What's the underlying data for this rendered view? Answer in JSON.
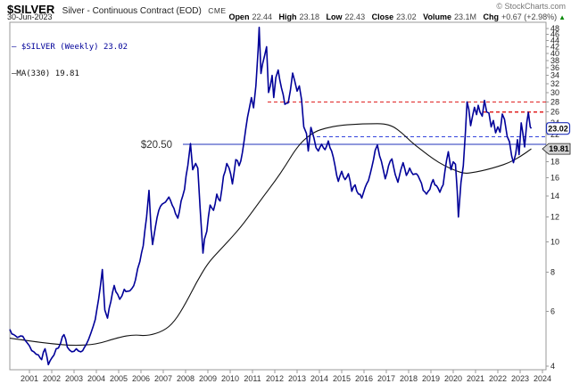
{
  "header": {
    "symbol": "$SILVER",
    "description": "Silver - Continuous Contract (EOD)",
    "exchange": "CME",
    "date": "30-Jun-2023",
    "copyright": "© StockCharts.com",
    "quote": {
      "open_label": "Open",
      "open": "22.44",
      "high_label": "High",
      "high": "23.18",
      "low_label": "Low",
      "low": "22.43",
      "close_label": "Close",
      "close": "23.02",
      "volume_label": "Volume",
      "volume": "23.1M",
      "chg_label": "Chg",
      "chg": "+0.67 (+2.98%)",
      "chg_icon": "▲",
      "chg_direction": "up"
    }
  },
  "legend": {
    "swatch_glyph": "—",
    "series1": " $SILVER (Weekly) 23.02",
    "series2": "MA(330) 19.81"
  },
  "annotations": {
    "level_label": "$20.50",
    "price_badge": {
      "text": "23.02",
      "value": 23.02
    },
    "ma_badge": {
      "text": "19.81",
      "value": 19.81
    }
  },
  "colors": {
    "price_line": "#000099",
    "ma_line": "#111111",
    "support_solid": "#2233bb",
    "support_dashed": "#3344dd",
    "resistance_dashed": "#e02222",
    "frame": "#999999",
    "axis_text": "#333333",
    "up_green": "#0a8a0a"
  },
  "chart_data": {
    "type": "line",
    "title": "$SILVER Silver - Continuous Contract (EOD) CME",
    "subtitle": "Weekly line chart with 330-period moving average, log scale",
    "x_axis": {
      "ticks": [
        2001,
        2002,
        2003,
        2004,
        2005,
        2006,
        2007,
        2008,
        2009,
        2010,
        2011,
        2012,
        2013,
        2014,
        2015,
        2016,
        2017,
        2018,
        2019,
        2020,
        2021,
        2022,
        2023,
        2024
      ],
      "range": [
        2000.1,
        2024.2
      ]
    },
    "y_axis": {
      "scale": "log",
      "ticks": [
        48,
        46,
        44,
        42,
        40,
        38,
        36,
        34,
        32,
        30,
        28,
        26,
        24,
        22,
        20,
        18,
        16,
        14,
        12,
        10,
        8,
        6,
        4
      ],
      "unlabeled": [
        20
      ],
      "range": [
        4,
        48
      ],
      "grid": false
    },
    "legend_position": "top-left-inside",
    "levels": [
      {
        "price": 20.5,
        "from": 2007.88,
        "style": "solid",
        "color": "#2233bb",
        "label": "$20.50"
      },
      {
        "price": 21.65,
        "from": 2013.88,
        "style": "dashed",
        "color": "#3344dd",
        "label": ""
      },
      {
        "price": 28.0,
        "from": 2011.68,
        "style": "dashed",
        "color": "#e02222",
        "label": ""
      },
      {
        "price": 26.0,
        "from": 2021.36,
        "style": "dashed",
        "color": "#e02222",
        "label": ""
      }
    ],
    "series": [
      {
        "name": "$SILVER (Weekly)",
        "last": 23.02,
        "color": "#000099",
        "points": [
          [
            2000.12,
            5.25
          ],
          [
            2000.3,
            5.05
          ],
          [
            2000.45,
            4.95
          ],
          [
            2000.6,
            5.0
          ],
          [
            2000.8,
            4.85
          ],
          [
            2001.0,
            4.65
          ],
          [
            2001.2,
            4.45
          ],
          [
            2001.4,
            4.35
          ],
          [
            2001.55,
            4.2
          ],
          [
            2001.7,
            4.55
          ],
          [
            2001.85,
            4.05
          ],
          [
            2002.0,
            4.25
          ],
          [
            2002.2,
            4.55
          ],
          [
            2002.4,
            4.75
          ],
          [
            2002.55,
            5.05
          ],
          [
            2002.7,
            4.6
          ],
          [
            2002.9,
            4.45
          ],
          [
            2003.1,
            4.55
          ],
          [
            2003.3,
            4.45
          ],
          [
            2003.55,
            4.7
          ],
          [
            2003.75,
            5.1
          ],
          [
            2003.95,
            5.65
          ],
          [
            2004.1,
            6.55
          ],
          [
            2004.27,
            8.15
          ],
          [
            2004.38,
            6.05
          ],
          [
            2004.5,
            5.7
          ],
          [
            2004.65,
            6.45
          ],
          [
            2004.8,
            7.25
          ],
          [
            2004.95,
            6.8
          ],
          [
            2005.05,
            6.55
          ],
          [
            2005.25,
            7.05
          ],
          [
            2005.4,
            6.95
          ],
          [
            2005.6,
            7.1
          ],
          [
            2005.75,
            7.55
          ],
          [
            2005.95,
            8.65
          ],
          [
            2006.1,
            9.7
          ],
          [
            2006.25,
            12.0
          ],
          [
            2006.36,
            14.6
          ],
          [
            2006.45,
            11.0
          ],
          [
            2006.52,
            9.8
          ],
          [
            2006.65,
            11.2
          ],
          [
            2006.8,
            12.6
          ],
          [
            2006.95,
            13.2
          ],
          [
            2007.1,
            13.4
          ],
          [
            2007.25,
            13.9
          ],
          [
            2007.4,
            13.1
          ],
          [
            2007.55,
            12.3
          ],
          [
            2007.65,
            11.9
          ],
          [
            2007.8,
            13.5
          ],
          [
            2007.95,
            14.7
          ],
          [
            2008.1,
            17.5
          ],
          [
            2008.22,
            20.6
          ],
          [
            2008.32,
            17.0
          ],
          [
            2008.45,
            17.8
          ],
          [
            2008.55,
            17.2
          ],
          [
            2008.65,
            12.8
          ],
          [
            2008.78,
            9.2
          ],
          [
            2008.85,
            10.2
          ],
          [
            2008.95,
            10.8
          ],
          [
            2009.1,
            13.1
          ],
          [
            2009.25,
            12.6
          ],
          [
            2009.4,
            14.2
          ],
          [
            2009.55,
            13.5
          ],
          [
            2009.7,
            16.2
          ],
          [
            2009.85,
            17.8
          ],
          [
            2009.95,
            17.2
          ],
          [
            2010.1,
            15.3
          ],
          [
            2010.25,
            18.3
          ],
          [
            2010.4,
            17.5
          ],
          [
            2010.55,
            19.3
          ],
          [
            2010.7,
            23.0
          ],
          [
            2010.85,
            26.5
          ],
          [
            2010.95,
            28.9
          ],
          [
            2011.05,
            26.8
          ],
          [
            2011.15,
            31.5
          ],
          [
            2011.25,
            41.0
          ],
          [
            2011.3,
            48.45
          ],
          [
            2011.38,
            34.5
          ],
          [
            2011.45,
            37.0
          ],
          [
            2011.55,
            39.5
          ],
          [
            2011.63,
            42.0
          ],
          [
            2011.72,
            30.0
          ],
          [
            2011.8,
            31.5
          ],
          [
            2011.88,
            34.0
          ],
          [
            2011.95,
            28.9
          ],
          [
            2012.05,
            33.5
          ],
          [
            2012.15,
            35.4
          ],
          [
            2012.3,
            31.0
          ],
          [
            2012.45,
            27.5
          ],
          [
            2012.6,
            27.8
          ],
          [
            2012.7,
            30.5
          ],
          [
            2012.8,
            34.6
          ],
          [
            2012.9,
            32.5
          ],
          [
            2013.0,
            30.3
          ],
          [
            2013.1,
            31.5
          ],
          [
            2013.2,
            28.5
          ],
          [
            2013.3,
            23.3
          ],
          [
            2013.42,
            22.2
          ],
          [
            2013.5,
            19.5
          ],
          [
            2013.62,
            23.2
          ],
          [
            2013.75,
            21.5
          ],
          [
            2013.85,
            20.0
          ],
          [
            2013.95,
            19.5
          ],
          [
            2014.1,
            20.5
          ],
          [
            2014.25,
            19.7
          ],
          [
            2014.4,
            21.0
          ],
          [
            2014.55,
            19.5
          ],
          [
            2014.7,
            17.5
          ],
          [
            2014.85,
            15.6
          ],
          [
            2015.0,
            16.8
          ],
          [
            2015.15,
            15.8
          ],
          [
            2015.3,
            16.5
          ],
          [
            2015.45,
            14.5
          ],
          [
            2015.6,
            15.2
          ],
          [
            2015.75,
            14.2
          ],
          [
            2015.9,
            13.8
          ],
          [
            2016.05,
            14.9
          ],
          [
            2016.2,
            15.7
          ],
          [
            2016.35,
            17.3
          ],
          [
            2016.5,
            19.6
          ],
          [
            2016.6,
            20.4
          ],
          [
            2016.7,
            18.8
          ],
          [
            2016.85,
            17.2
          ],
          [
            2016.95,
            15.9
          ],
          [
            2017.1,
            17.5
          ],
          [
            2017.25,
            18.4
          ],
          [
            2017.4,
            16.4
          ],
          [
            2017.52,
            15.5
          ],
          [
            2017.65,
            17.0
          ],
          [
            2017.75,
            17.9
          ],
          [
            2017.9,
            16.3
          ],
          [
            2018.05,
            17.2
          ],
          [
            2018.2,
            16.4
          ],
          [
            2018.35,
            16.5
          ],
          [
            2018.5,
            15.8
          ],
          [
            2018.65,
            14.6
          ],
          [
            2018.8,
            14.2
          ],
          [
            2018.95,
            14.7
          ],
          [
            2019.1,
            15.8
          ],
          [
            2019.25,
            15.1
          ],
          [
            2019.4,
            14.4
          ],
          [
            2019.55,
            15.2
          ],
          [
            2019.7,
            18.2
          ],
          [
            2019.78,
            19.4
          ],
          [
            2019.9,
            17.0
          ],
          [
            2020.0,
            18.0
          ],
          [
            2020.1,
            17.7
          ],
          [
            2020.18,
            14.5
          ],
          [
            2020.23,
            12.0
          ],
          [
            2020.35,
            15.5
          ],
          [
            2020.45,
            17.5
          ],
          [
            2020.55,
            22.5
          ],
          [
            2020.62,
            28.0
          ],
          [
            2020.7,
            26.5
          ],
          [
            2020.78,
            23.5
          ],
          [
            2020.88,
            25.5
          ],
          [
            2020.95,
            26.9
          ],
          [
            2021.05,
            25.5
          ],
          [
            2021.12,
            27.3
          ],
          [
            2021.2,
            26.0
          ],
          [
            2021.3,
            25.2
          ],
          [
            2021.4,
            28.3
          ],
          [
            2021.5,
            26.0
          ],
          [
            2021.6,
            25.8
          ],
          [
            2021.7,
            23.3
          ],
          [
            2021.8,
            24.4
          ],
          [
            2021.9,
            22.3
          ],
          [
            2022.0,
            23.3
          ],
          [
            2022.1,
            22.4
          ],
          [
            2022.2,
            25.6
          ],
          [
            2022.3,
            24.6
          ],
          [
            2022.42,
            21.7
          ],
          [
            2022.52,
            20.9
          ],
          [
            2022.62,
            18.8
          ],
          [
            2022.7,
            17.9
          ],
          [
            2022.8,
            19.1
          ],
          [
            2022.88,
            21.2
          ],
          [
            2022.95,
            19.0
          ],
          [
            2023.05,
            24.0
          ],
          [
            2023.12,
            22.3
          ],
          [
            2023.2,
            20.1
          ],
          [
            2023.3,
            24.1
          ],
          [
            2023.37,
            25.9
          ],
          [
            2023.45,
            23.3
          ],
          [
            2023.5,
            23.02
          ]
        ]
      },
      {
        "name": "MA(330)",
        "last": 19.81,
        "color": "#111111",
        "points": [
          [
            2000.12,
            4.92
          ],
          [
            2001,
            4.82
          ],
          [
            2002,
            4.72
          ],
          [
            2003,
            4.66
          ],
          [
            2004,
            4.7
          ],
          [
            2005,
            4.95
          ],
          [
            2005.7,
            5.05
          ],
          [
            2006.3,
            5.0
          ],
          [
            2007,
            5.18
          ],
          [
            2007.5,
            5.55
          ],
          [
            2008,
            6.35
          ],
          [
            2008.5,
            7.45
          ],
          [
            2009,
            8.55
          ],
          [
            2009.5,
            9.35
          ],
          [
            2010,
            10.2
          ],
          [
            2010.5,
            11.2
          ],
          [
            2011,
            12.5
          ],
          [
            2011.5,
            14.0
          ],
          [
            2012,
            15.6
          ],
          [
            2012.5,
            17.6
          ],
          [
            2012.9,
            19.6
          ],
          [
            2013.3,
            21.2
          ],
          [
            2013.8,
            22.5
          ],
          [
            2014.3,
            23.1
          ],
          [
            2014.9,
            23.55
          ],
          [
            2015.6,
            23.75
          ],
          [
            2016.3,
            23.85
          ],
          [
            2016.9,
            23.85
          ],
          [
            2017.3,
            23.4
          ],
          [
            2017.7,
            22.3
          ],
          [
            2018.1,
            20.9
          ],
          [
            2018.6,
            19.6
          ],
          [
            2019.1,
            18.4
          ],
          [
            2019.6,
            17.5
          ],
          [
            2020.1,
            16.9
          ],
          [
            2020.5,
            16.5
          ],
          [
            2021,
            16.7
          ],
          [
            2021.5,
            17.0
          ],
          [
            2022,
            17.4
          ],
          [
            2022.5,
            17.9
          ],
          [
            2023,
            18.7
          ],
          [
            2023.5,
            19.81
          ]
        ]
      }
    ]
  }
}
